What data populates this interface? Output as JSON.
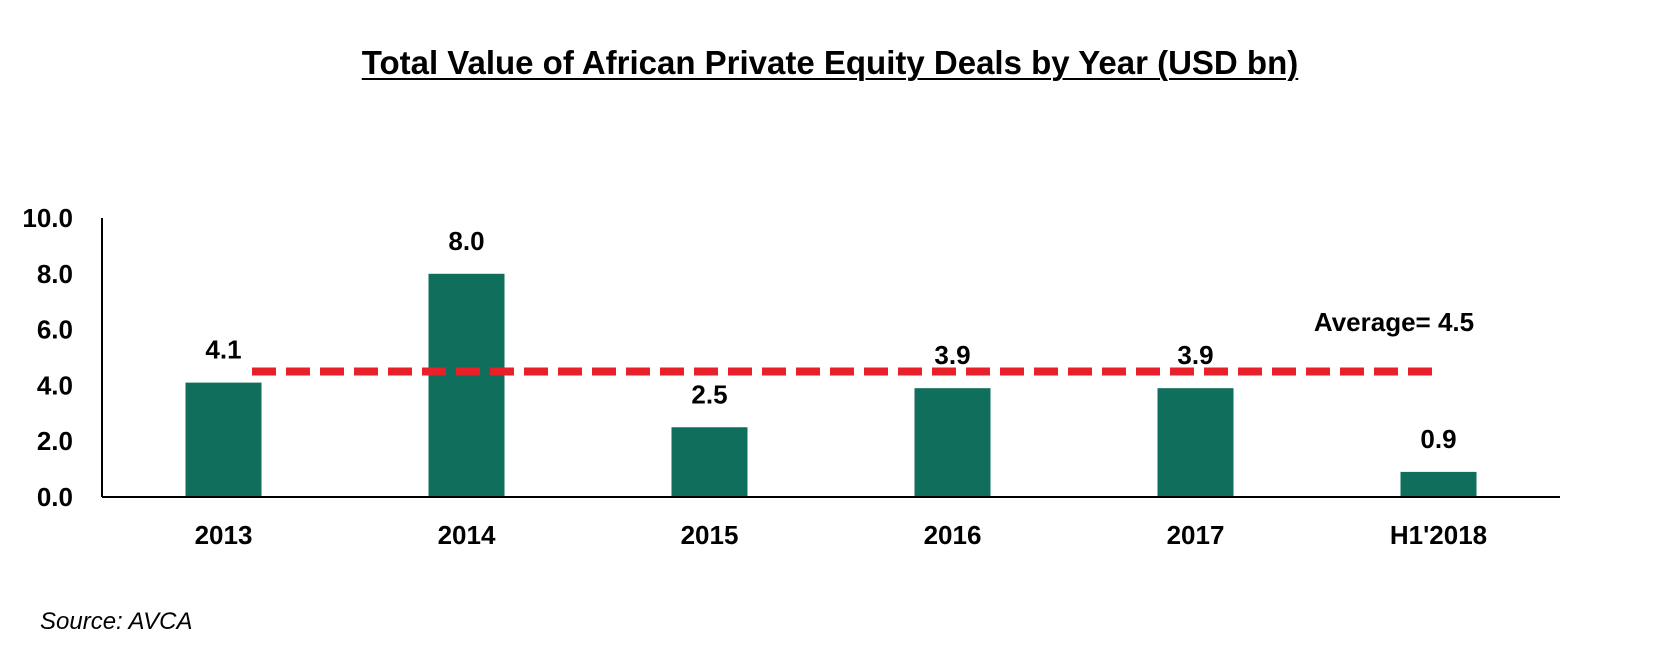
{
  "chart_data": {
    "type": "bar",
    "title": "Total Value of African Private Equity Deals by Year (USD bn)",
    "xlabel": "",
    "ylabel": "",
    "categories": [
      "2013",
      "2014",
      "2015",
      "2016",
      "2017",
      "H1'2018"
    ],
    "values": [
      4.1,
      8.0,
      2.5,
      3.9,
      3.9,
      0.9
    ],
    "value_labels": [
      "4.1",
      "8.0",
      "2.5",
      "3.9",
      "3.9",
      "0.9"
    ],
    "ylim": [
      0,
      10
    ],
    "yticks": [
      "0.0",
      "2.0",
      "4.0",
      "6.0",
      "8.0",
      "10.0"
    ],
    "average": 4.5,
    "average_label": "Average= 4.5",
    "grid": false,
    "legend": "none",
    "colors": {
      "bar": "#0f6e5c",
      "average_line": "#e8202a",
      "axis": "#000000"
    }
  },
  "source": "Source: AVCA"
}
